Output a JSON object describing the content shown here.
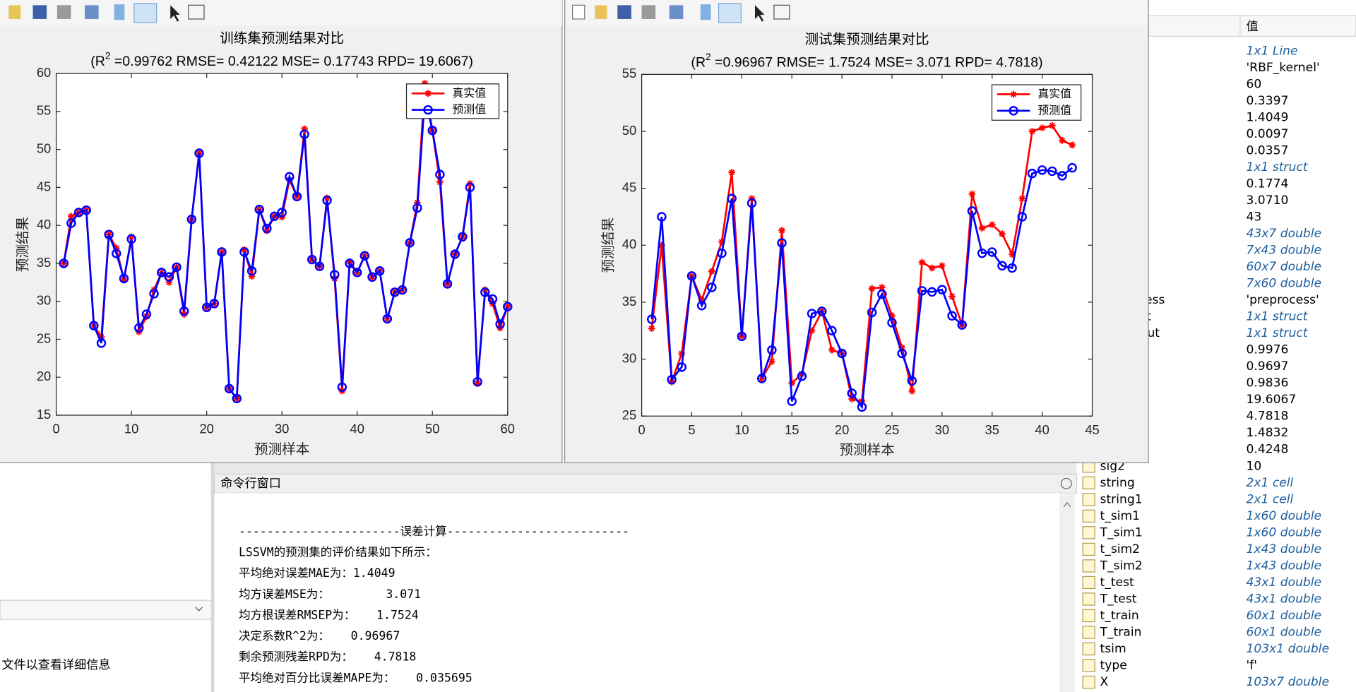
{
  "chart_data": [
    {
      "type": "line",
      "title": "训练集预测结果对比",
      "subtitle": "(R",
      "subtitle_sup": "2",
      "subtitle_rest": " =0.99762 RMSE= 0.42122 MSE= 0.17743 RPD= 19.6067)",
      "x_label": "预测样本",
      "y_label": "预测结果",
      "legend": "upper right",
      "x": [
        1,
        2,
        3,
        4,
        5,
        6,
        7,
        8,
        9,
        10,
        11,
        12,
        13,
        14,
        15,
        16,
        17,
        18,
        19,
        20,
        21,
        22,
        23,
        24,
        25,
        26,
        27,
        28,
        29,
        30,
        31,
        32,
        33,
        34,
        35,
        36,
        37,
        38,
        39,
        40,
        41,
        42,
        43,
        44,
        45,
        46,
        47,
        48,
        49,
        50,
        51,
        52,
        53,
        54,
        55,
        56,
        57,
        58,
        59,
        60
      ],
      "series": [
        {
          "name": "真实值",
          "color": "#ff0000",
          "marker": "star",
          "values": [
            35,
            41.2,
            41.7,
            42,
            26.8,
            25.3,
            38.8,
            37,
            32.8,
            38.5,
            26,
            28,
            31.5,
            33.8,
            32.5,
            34.5,
            28.3,
            40.8,
            49.5,
            29.2,
            29.7,
            36.5,
            18.5,
            17.2,
            36.8,
            33.3,
            42.1,
            39.3,
            41.2,
            41.1,
            46,
            43.8,
            52.7,
            35.5,
            34.6,
            43.6,
            33,
            18.2,
            35.2,
            33.8,
            36,
            33.2,
            34,
            27.7,
            31.2,
            31.5,
            37.7,
            43,
            58.7,
            52.5,
            45.7,
            32.3,
            36.2,
            38.5,
            45.5,
            19.2,
            31.5,
            29.7,
            26.5,
            29.3
          ]
        },
        {
          "name": "预测值",
          "color": "#0000ff",
          "marker": "circle",
          "values": [
            35,
            40.3,
            41.7,
            42,
            26.8,
            24.5,
            38.8,
            36.3,
            33,
            38.2,
            26.5,
            28.3,
            31,
            33.8,
            33.2,
            34.5,
            28.7,
            40.8,
            49.5,
            29.2,
            29.7,
            36.5,
            18.5,
            17.2,
            36.5,
            34,
            42.1,
            39.6,
            41.2,
            41.7,
            46.4,
            43.8,
            52,
            35.5,
            34.6,
            43.3,
            33.5,
            18.7,
            35,
            33.8,
            36,
            33.2,
            34,
            27.7,
            31.2,
            31.5,
            37.7,
            42.3,
            57,
            52.5,
            46.7,
            32.3,
            36.2,
            38.5,
            45,
            19.4,
            31.2,
            30.3,
            27,
            29.3
          ]
        }
      ],
      "xlim": [
        0,
        60
      ],
      "xticks": [
        0,
        10,
        20,
        30,
        40,
        50,
        60
      ],
      "ylim": [
        15,
        60
      ],
      "yticks": [
        15,
        20,
        25,
        30,
        35,
        40,
        45,
        50,
        55,
        60
      ]
    },
    {
      "type": "line",
      "title": "测试集预测结果对比",
      "subtitle": "(R",
      "subtitle_sup": "2",
      "subtitle_rest": " =0.96967 RMSE= 1.7524 MSE= 3.071 RPD= 4.7818)",
      "x_label": "预测样本",
      "y_label": "预测结果",
      "legend": "upper right",
      "x": [
        1,
        2,
        3,
        4,
        5,
        6,
        7,
        8,
        9,
        10,
        11,
        12,
        13,
        14,
        15,
        16,
        17,
        18,
        19,
        20,
        21,
        22,
        23,
        24,
        25,
        26,
        27,
        28,
        29,
        30,
        31,
        32,
        33,
        34,
        35,
        36,
        37,
        38,
        39,
        40,
        41,
        42,
        43
      ],
      "series": [
        {
          "name": "真实值",
          "color": "#ff0000",
          "marker": "star",
          "values": [
            32.7,
            40,
            28,
            30.5,
            37.3,
            35.2,
            37.7,
            40.3,
            46.4,
            32,
            44.1,
            28.3,
            29.8,
            41.3,
            27.9,
            28.7,
            32.5,
            34.2,
            30.8,
            30.5,
            26.5,
            26.3,
            36.2,
            36.3,
            33.8,
            31,
            27.2,
            38.5,
            38,
            38.2,
            35.5,
            33,
            44.5,
            41.5,
            41.8,
            41,
            39.2,
            44.1,
            50,
            50.3,
            50.5,
            49.2,
            48.8
          ]
        },
        {
          "name": "预测值",
          "color": "#0000ff",
          "marker": "circle",
          "values": [
            33.5,
            42.5,
            28.2,
            29.3,
            37.3,
            34.7,
            36.3,
            39.3,
            44.1,
            32,
            43.7,
            28.3,
            30.8,
            40.2,
            26.3,
            28.5,
            34,
            34.2,
            32.5,
            30.5,
            27,
            25.8,
            34.1,
            35.7,
            33.2,
            30.5,
            28.1,
            36,
            35.9,
            36.1,
            33.8,
            33,
            43,
            39.3,
            39.4,
            38.2,
            38,
            42.5,
            46.3,
            46.6,
            46.5,
            46.1,
            46.8
          ]
        }
      ],
      "xlim": [
        0,
        45
      ],
      "xticks": [
        0,
        5,
        10,
        15,
        20,
        25,
        30,
        35,
        40,
        45
      ],
      "ylim": [
        25,
        55
      ],
      "yticks": [
        25,
        30,
        35,
        40,
        45,
        50,
        55
      ]
    }
  ],
  "workspace": {
    "value_header": "值",
    "rows": [
      {
        "value": "1x1 Line"
      },
      {
        "value": "'RBF_kernel'"
      },
      {
        "value": "60"
      },
      {
        "value": "0.3397"
      },
      {
        "value": "1.4049"
      },
      {
        "value": "0.0097"
      },
      {
        "value": "0.0357"
      },
      {
        "value": "1x1 struct"
      },
      {
        "value": "0.1774"
      },
      {
        "value": "3.0710"
      },
      {
        "value": "43"
      },
      {
        "value": "43x7 double"
      },
      {
        "value": "7x43 double"
      },
      {
        "value": "60x7 double"
      },
      {
        "value": "7x60 double"
      },
      {
        "name": "ess",
        "value": "'preprocess'"
      },
      {
        "name": "t",
        "value": "1x1 struct"
      },
      {
        "name": "ut",
        "value": "1x1 struct"
      },
      {
        "value": "0.9976"
      },
      {
        "value": "0.9697"
      },
      {
        "value": "0.9836"
      },
      {
        "value": "19.6067"
      },
      {
        "value": "4.7818"
      },
      {
        "value": "1.4832"
      },
      {
        "value": "0.4248"
      },
      {
        "name": "sig2",
        "value": "10"
      },
      {
        "name": "string",
        "value": "2x1 cell"
      },
      {
        "name": "string1",
        "value": "2x1 cell"
      },
      {
        "name": "t_sim1",
        "value": "1x60 double"
      },
      {
        "name": "T_sim1",
        "value": "1x60 double"
      },
      {
        "name": "t_sim2",
        "value": "1x43 double"
      },
      {
        "name": "T_sim2",
        "value": "1x43 double"
      },
      {
        "name": "t_test",
        "value": "43x1 double"
      },
      {
        "name": "T_test",
        "value": "43x1 double"
      },
      {
        "name": "t_train",
        "value": "60x1 double"
      },
      {
        "name": "T_train",
        "value": "60x1 double"
      },
      {
        "name": "tsim",
        "value": "103x1 double"
      },
      {
        "name": "type",
        "value": "'f'"
      },
      {
        "name": "X",
        "value": "103x7 double"
      }
    ]
  },
  "command_window": {
    "title": "命令行窗口",
    "lines": [
      "-----------------------误差计算--------------------------",
      "LSSVM的预测集的评价结果如下所示：",
      "平均绝对误差MAE为：1.4049",
      "均方误差MSE为：        3.071",
      "均方根误差RMSEP为：   1.7524",
      "决定系数R^2为：   0.96967",
      "剩余预测残差RPD为：   4.7818",
      "平均绝对百分比误差MAPE为：   0.035695"
    ]
  },
  "left_panel": {
    "hint": "文件以查看详细信息"
  }
}
